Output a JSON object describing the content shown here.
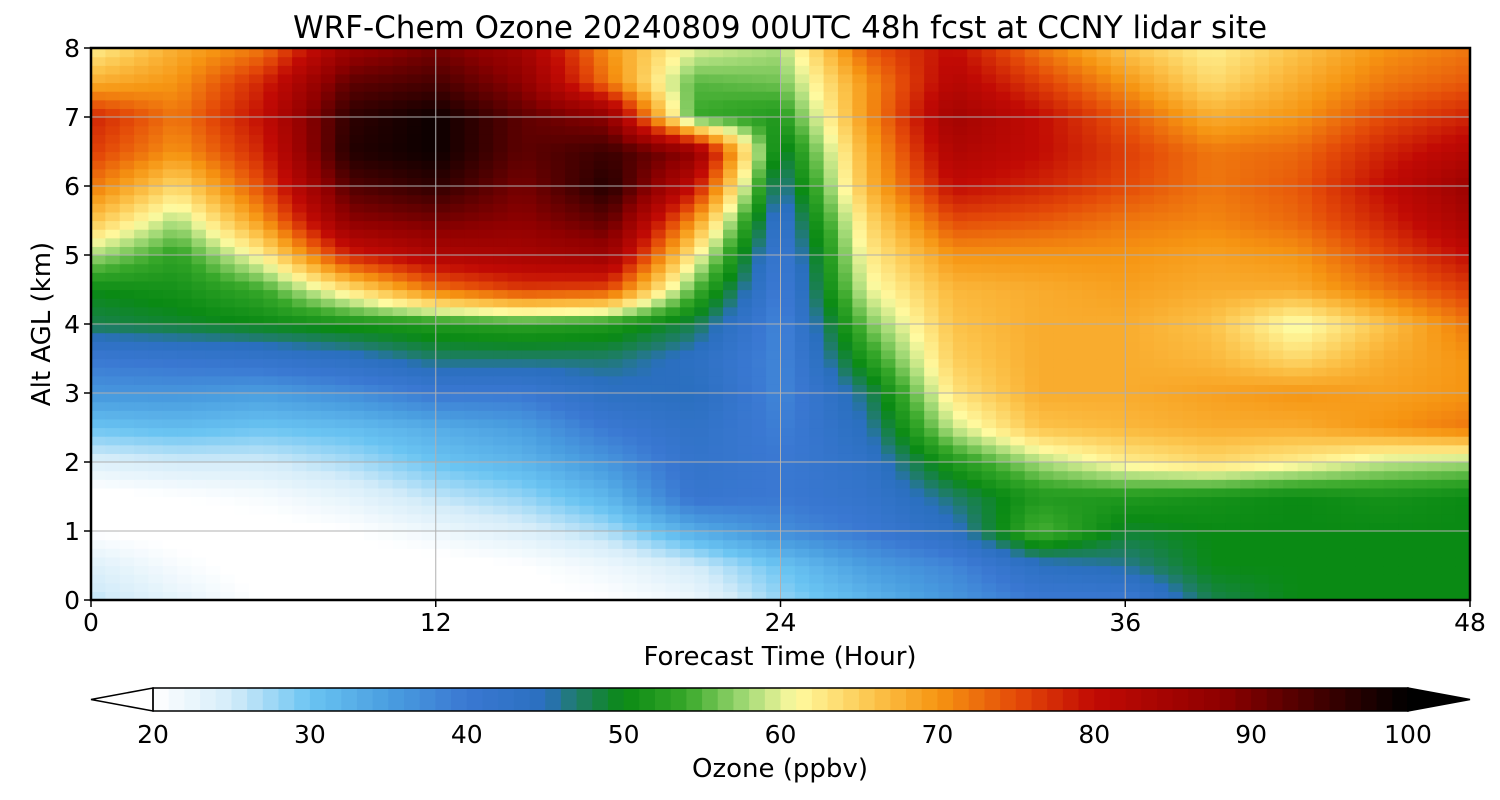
{
  "chart_data": {
    "type": "heatmap",
    "title": "WRF-Chem Ozone  20240809 00UTC 48h fcst at CCNY lidar site",
    "xlabel": "Forecast Time (Hour)",
    "ylabel": "Alt AGL (km)",
    "xlim": [
      0,
      48
    ],
    "ylim": [
      0,
      8
    ],
    "x_ticks": [
      "0",
      "12",
      "24",
      "36",
      "48"
    ],
    "y_ticks": [
      "0",
      "1",
      "2",
      "3",
      "4",
      "5",
      "6",
      "7",
      "8"
    ],
    "grid": true,
    "x": [
      0,
      3,
      6,
      9,
      12,
      15,
      18,
      21,
      24,
      27,
      30,
      33,
      36,
      39,
      42,
      45,
      48
    ],
    "y": [
      0,
      0.5,
      1,
      1.5,
      2,
      2.5,
      3,
      3.5,
      4,
      4.5,
      5,
      5.5,
      6,
      6.5,
      7,
      7.5,
      8
    ],
    "z": [
      [
        26,
        23,
        20,
        19,
        18,
        19,
        20,
        22,
        28,
        32,
        36,
        40,
        40,
        48,
        50,
        50,
        50
      ],
      [
        24,
        21,
        19,
        19,
        19,
        20,
        22,
        25,
        30,
        35,
        38,
        44,
        46,
        50,
        50,
        50,
        50
      ],
      [
        20,
        19,
        19,
        20,
        22,
        24,
        27,
        33,
        37,
        40,
        44,
        55,
        49,
        50,
        50,
        50,
        50
      ],
      [
        19,
        20,
        21,
        23,
        26,
        28,
        32,
        41,
        40,
        42,
        47,
        52,
        52,
        51,
        50,
        51,
        50
      ],
      [
        24,
        25,
        25,
        27,
        30,
        32,
        36,
        42,
        40,
        43,
        52,
        58,
        62,
        64,
        62,
        59,
        58
      ],
      [
        30,
        31,
        30,
        31,
        33,
        35,
        40,
        43,
        39,
        45,
        59,
        66,
        67,
        68,
        68,
        70,
        72
      ],
      [
        36,
        36,
        35,
        37,
        40,
        40,
        44,
        45,
        38,
        47,
        63,
        68,
        68,
        69,
        70,
        69,
        70
      ],
      [
        40,
        41,
        42,
        44,
        47,
        47,
        47,
        44,
        38,
        52,
        65,
        68,
        68,
        67,
        64,
        68,
        70
      ],
      [
        48,
        49,
        50,
        51,
        52,
        53,
        52,
        48,
        38,
        56,
        66,
        68,
        68,
        66,
        60,
        66,
        72
      ],
      [
        50,
        51,
        54,
        63,
        72,
        76,
        75,
        55,
        39,
        60,
        67,
        68,
        69,
        68,
        68,
        72,
        76
      ],
      [
        58,
        53,
        62,
        78,
        83,
        84,
        86,
        62,
        40,
        62,
        70,
        70,
        70,
        69,
        70,
        75,
        80
      ],
      [
        66,
        58,
        70,
        88,
        90,
        88,
        92,
        70,
        42,
        64,
        75,
        74,
        72,
        71,
        73,
        78,
        84
      ],
      [
        72,
        64,
        75,
        93,
        96,
        90,
        97,
        80,
        45,
        67,
        80,
        78,
        75,
        72,
        74,
        80,
        86
      ],
      [
        76,
        70,
        78,
        97,
        99,
        92,
        95,
        88,
        48,
        68,
        83,
        80,
        76,
        72,
        73,
        78,
        82
      ],
      [
        78,
        72,
        80,
        96,
        99,
        92,
        88,
        54,
        52,
        70,
        85,
        80,
        74,
        68,
        70,
        75,
        78
      ],
      [
        68,
        70,
        78,
        92,
        94,
        88,
        72,
        55,
        56,
        70,
        82,
        76,
        70,
        64,
        68,
        72,
        74
      ],
      [
        62,
        68,
        72,
        86,
        90,
        85,
        70,
        60,
        58,
        74,
        80,
        72,
        66,
        62,
        66,
        70,
        72
      ]
    ],
    "colorbar": {
      "label": "Ozone  (ppbv)",
      "min": 20,
      "max": 100,
      "extend": "both",
      "ticks": [
        "20",
        "30",
        "40",
        "50",
        "60",
        "70",
        "80",
        "90",
        "100"
      ]
    },
    "colormap": [
      [
        20,
        "#ffffff"
      ],
      [
        25,
        "#d4ecf9"
      ],
      [
        30,
        "#6ac4f2"
      ],
      [
        35,
        "#4a9ee0"
      ],
      [
        40,
        "#3a78d2"
      ],
      [
        45,
        "#2a6fbf"
      ],
      [
        47,
        "#1f7c6a"
      ],
      [
        50,
        "#0a8a14"
      ],
      [
        54,
        "#38a82a"
      ],
      [
        58,
        "#a8dc7a"
      ],
      [
        61,
        "#fffaa0"
      ],
      [
        66,
        "#fcc34a"
      ],
      [
        70,
        "#f69512"
      ],
      [
        75,
        "#e44a08"
      ],
      [
        80,
        "#c10a04"
      ],
      [
        88,
        "#8f0000"
      ],
      [
        95,
        "#3a0000"
      ],
      [
        100,
        "#000000"
      ]
    ]
  }
}
